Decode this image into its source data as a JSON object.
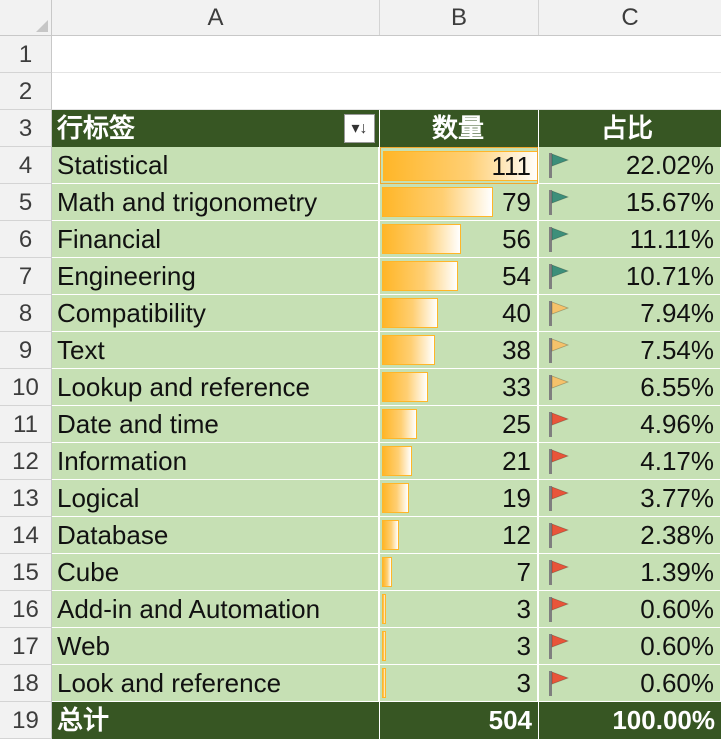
{
  "columns": [
    "A",
    "B",
    "C"
  ],
  "row_numbers": [
    "1",
    "2",
    "3",
    "4",
    "5",
    "6",
    "7",
    "8",
    "9",
    "10",
    "11",
    "12",
    "13",
    "14",
    "15",
    "16",
    "17",
    "18",
    "19"
  ],
  "pivot": {
    "header": {
      "label": "行标签",
      "count": "数量",
      "share": "占比",
      "filter_icon": "sort-filter-icon"
    },
    "rows": [
      {
        "label": "Statistical",
        "count": "111",
        "share": "22.02%",
        "flag": "green"
      },
      {
        "label": "Math and trigonometry",
        "count": "79",
        "share": "15.67%",
        "flag": "green"
      },
      {
        "label": "Financial",
        "count": "56",
        "share": "11.11%",
        "flag": "green"
      },
      {
        "label": "Engineering",
        "count": "54",
        "share": "10.71%",
        "flag": "green"
      },
      {
        "label": "Compatibility",
        "count": "40",
        "share": "7.94%",
        "flag": "yellow"
      },
      {
        "label": "Text",
        "count": "38",
        "share": "7.54%",
        "flag": "yellow"
      },
      {
        "label": "Lookup and reference",
        "count": "33",
        "share": "6.55%",
        "flag": "yellow"
      },
      {
        "label": "Date and time",
        "count": "25",
        "share": "4.96%",
        "flag": "red"
      },
      {
        "label": "Information",
        "count": "21",
        "share": "4.17%",
        "flag": "red"
      },
      {
        "label": "Logical",
        "count": "19",
        "share": "3.77%",
        "flag": "red"
      },
      {
        "label": "Database",
        "count": "12",
        "share": "2.38%",
        "flag": "red"
      },
      {
        "label": "Cube",
        "count": "7",
        "share": "1.39%",
        "flag": "red"
      },
      {
        "label": "Add-in and Automation",
        "count": "3",
        "share": "0.60%",
        "flag": "red"
      },
      {
        "label": "Web",
        "count": "3",
        "share": "0.60%",
        "flag": "red"
      },
      {
        "label": "Look and reference",
        "count": "3",
        "share": "0.60%",
        "flag": "red"
      }
    ],
    "total": {
      "label": "总计",
      "count": "504",
      "share": "100.00%"
    }
  },
  "databar": {
    "min": 0,
    "max": 111,
    "color": "#ffb628"
  },
  "flag_colors": {
    "green": "#3d8f7a",
    "yellow": "#f5c26b",
    "red": "#e8553a"
  }
}
